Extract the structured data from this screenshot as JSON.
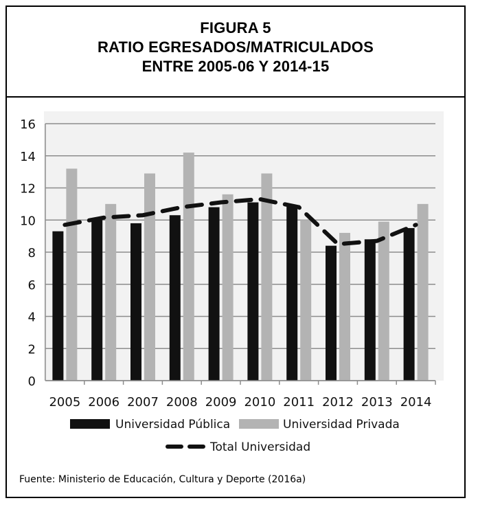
{
  "figure": {
    "label": "FIGURA 5",
    "title_line1": "RATIO EGRESADOS/MATRICULADOS",
    "title_line2": "ENTRE 2005-06 Y 2014-15"
  },
  "source": "Fuente: Ministerio de Educación, Cultura y Deporte (2016a)",
  "colors": {
    "publica": "#111111",
    "privada": "#b3b3b3",
    "total": "#111111",
    "plot_bg": "#f2f2f2",
    "grid": "#8c8c8c"
  },
  "chart_data": {
    "type": "bar",
    "categories": [
      "2005",
      "2006",
      "2007",
      "2008",
      "2009",
      "2010",
      "2011",
      "2012",
      "2013",
      "2014"
    ],
    "series": [
      {
        "name": "Universidad Pública",
        "type": "bar",
        "values": [
          9.3,
          10.0,
          9.8,
          10.3,
          10.8,
          11.1,
          10.9,
          8.4,
          8.8,
          9.5
        ]
      },
      {
        "name": "Universidad Privada",
        "type": "bar",
        "values": [
          13.2,
          11.0,
          12.9,
          14.2,
          11.6,
          12.9,
          10.0,
          9.2,
          9.9,
          11.0
        ]
      },
      {
        "name": "Total Universidad",
        "type": "line",
        "style": "dashed",
        "values": [
          9.7,
          10.15,
          10.3,
          10.8,
          11.1,
          11.3,
          10.8,
          8.5,
          8.7,
          9.7
        ]
      }
    ],
    "ylim": [
      0,
      16
    ],
    "yticks": [
      0,
      2,
      4,
      6,
      8,
      10,
      12,
      14,
      16
    ],
    "grid": true,
    "legend_position": "bottom"
  }
}
